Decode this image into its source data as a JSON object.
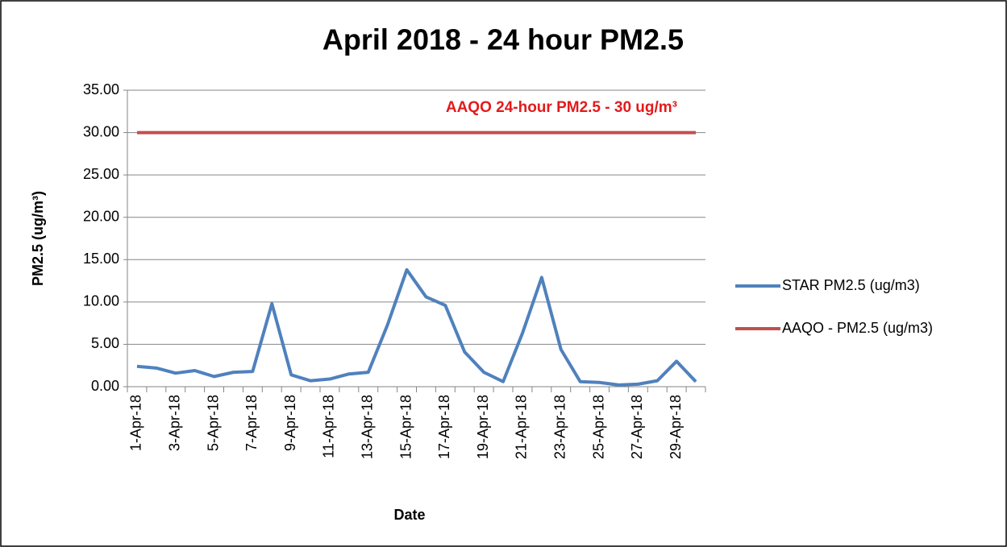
{
  "chart_data": {
    "type": "line",
    "title": "April 2018 - 24 hour PM2.5",
    "x_label": "Date",
    "y_label": "PM2.5 (ug/m³)",
    "annotation": "AAQO 24-hour PM2.5 - 30 ug/m³",
    "categories": [
      "1-Apr-18",
      null,
      "3-Apr-18",
      null,
      "5-Apr-18",
      null,
      "7-Apr-18",
      null,
      "9-Apr-18",
      null,
      "11-Apr-18",
      null,
      "13-Apr-18",
      null,
      "15-Apr-18",
      null,
      "17-Apr-18",
      null,
      "19-Apr-18",
      null,
      "21-Apr-18",
      null,
      "23-Apr-18",
      null,
      "25-Apr-18",
      null,
      "27-Apr-18",
      null,
      "29-Apr-18",
      null
    ],
    "series": [
      {
        "name": "STAR PM2.5 (ug/m3)",
        "color": "#4f81bd",
        "values": [
          2.4,
          2.2,
          1.6,
          1.9,
          1.2,
          1.7,
          1.8,
          9.8,
          1.4,
          0.7,
          0.9,
          1.5,
          1.7,
          7.3,
          13.8,
          10.6,
          9.6,
          4.1,
          1.7,
          0.6,
          6.3,
          12.9,
          4.4,
          0.6,
          0.5,
          0.2,
          0.3,
          0.7,
          3.0,
          0.6
        ]
      },
      {
        "name": "AAQO - PM2.5 (ug/m3)",
        "color": "#c0504d",
        "values": [
          30,
          30,
          30,
          30,
          30,
          30,
          30,
          30,
          30,
          30,
          30,
          30,
          30,
          30,
          30,
          30,
          30,
          30,
          30,
          30,
          30,
          30,
          30,
          30,
          30,
          30,
          30,
          30,
          30,
          30
        ]
      }
    ],
    "ylim": [
      0,
      35
    ],
    "yticks": [
      {
        "value": 0,
        "label": "0.00"
      },
      {
        "value": 5,
        "label": "5.00"
      },
      {
        "value": 10,
        "label": "10.00"
      },
      {
        "value": 15,
        "label": "15.00"
      },
      {
        "value": 20,
        "label": "20.00"
      },
      {
        "value": 25,
        "label": "25.00"
      },
      {
        "value": 30,
        "label": "30.00"
      },
      {
        "value": 35,
        "label": "35.00"
      }
    ],
    "grid": true,
    "legend": "right"
  }
}
